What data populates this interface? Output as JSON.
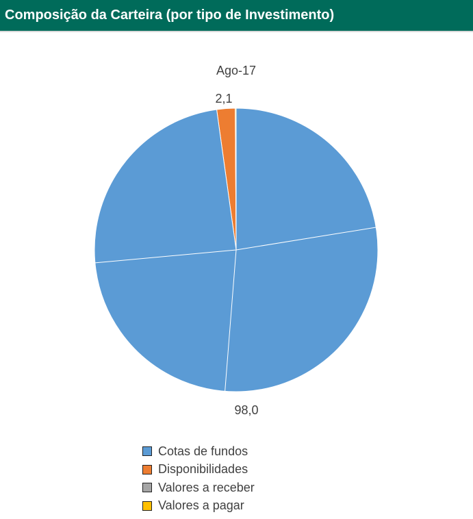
{
  "header": {
    "title": "Composição da Carteira (por tipo de Investimento)"
  },
  "chart_data": {
    "type": "pie",
    "title": "Ago-17",
    "slices": [
      {
        "name": "Cotas de fundos",
        "value": 98.0,
        "color": "#5B9BD5"
      },
      {
        "name": "Disponibilidades",
        "value": 2.1,
        "color": "#ED7D31"
      },
      {
        "name": "Valores a receber",
        "value": 0.0,
        "color": "#A5A5A5"
      },
      {
        "name": "Valores a pagar",
        "value": 0.1,
        "color": "#FFC000"
      }
    ],
    "data_labels": [
      "98,0",
      "2,1"
    ],
    "legend_position": "bottom"
  }
}
